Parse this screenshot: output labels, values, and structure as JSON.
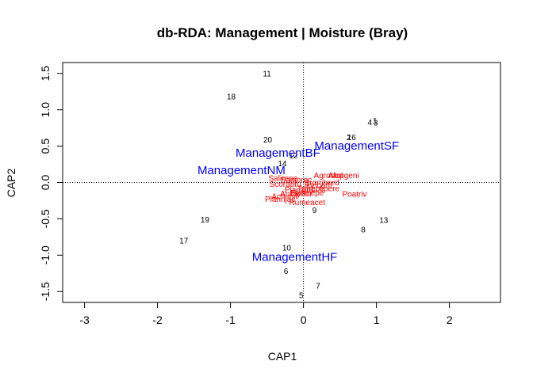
{
  "chart_data": {
    "type": "scatter",
    "title": "db-RDA: Management | Moisture (Bray)",
    "xlabel": "CAP1",
    "ylabel": "CAP2",
    "xlim": [
      -3.3,
      2.7
    ],
    "ylim": [
      -1.65,
      1.65
    ],
    "x_ticks": [
      -3,
      -2,
      -1,
      0,
      1,
      2
    ],
    "y_ticks": [
      -1.5,
      -1.0,
      -0.5,
      0.0,
      0.5,
      1.0,
      1.5
    ],
    "x_tick_labels": [
      "-3",
      "-2",
      "-1",
      "0",
      "1",
      "2"
    ],
    "y_tick_labels": [
      "-1.5",
      "-1.0",
      "-0.5",
      "0.0",
      "0.5",
      "1.0",
      "1.5"
    ],
    "reference_lines": {
      "x": 0,
      "y": 0,
      "style": "dotted"
    },
    "colors": {
      "sites": "#000000",
      "species": "#ff0000",
      "centroids": "#0000ff"
    },
    "sites": [
      {
        "label": "11",
        "x": -0.5,
        "y": 1.5
      },
      {
        "label": "18",
        "x": -0.99,
        "y": 1.18
      },
      {
        "label": "4",
        "x": 0.91,
        "y": 0.83
      },
      {
        "label": "1",
        "x": 0.98,
        "y": 0.85
      },
      {
        "label": "3",
        "x": 0.99,
        "y": 0.82
      },
      {
        "label": "2",
        "x": 0.62,
        "y": 0.62
      },
      {
        "label": "16",
        "x": 0.66,
        "y": 0.62
      },
      {
        "label": "20",
        "x": -0.49,
        "y": 0.59
      },
      {
        "label": "12",
        "x": -0.14,
        "y": 0.37
      },
      {
        "label": "14",
        "x": -0.29,
        "y": 0.26
      },
      {
        "label": "9",
        "x": 0.15,
        "y": -0.38
      },
      {
        "label": "19",
        "x": -1.35,
        "y": -0.51
      },
      {
        "label": "13",
        "x": 1.1,
        "y": -0.52
      },
      {
        "label": "8",
        "x": 0.82,
        "y": -0.65
      },
      {
        "label": "17",
        "x": -1.64,
        "y": -0.8
      },
      {
        "label": "10",
        "x": -0.23,
        "y": -0.9
      },
      {
        "label": "6",
        "x": -0.24,
        "y": -1.22
      },
      {
        "label": "7",
        "x": 0.2,
        "y": -1.42
      },
      {
        "label": "5",
        "x": -0.03,
        "y": -1.55
      }
    ],
    "species": [
      {
        "label": "Agrostol",
        "x": 0.34,
        "y": 0.1
      },
      {
        "label": "Alopgeni",
        "x": 0.55,
        "y": 0.1
      },
      {
        "label": "Salirepe",
        "x": -0.28,
        "y": 0.06
      },
      {
        "label": "Sagiproc",
        "x": -0.1,
        "y": 0.04
      },
      {
        "label": "Scorautu",
        "x": -0.25,
        "y": -0.02
      },
      {
        "label": "Bromhord",
        "x": 0.25,
        "y": 0.0
      },
      {
        "label": "Juncarti",
        "x": 0.2,
        "y": -0.03
      },
      {
        "label": "Trifrepe",
        "x": 0.1,
        "y": -0.08
      },
      {
        "label": "Planlanc",
        "x": -0.05,
        "y": -0.1
      },
      {
        "label": "Lolipere",
        "x": 0.3,
        "y": -0.08
      },
      {
        "label": "Poatriv",
        "x": 0.7,
        "y": -0.16
      },
      {
        "label": "Anthodor",
        "x": -0.1,
        "y": -0.15
      },
      {
        "label": "Elymrepe",
        "x": 0.05,
        "y": -0.14
      },
      {
        "label": "Achimill",
        "x": -0.25,
        "y": -0.19
      },
      {
        "label": "Rumeacet",
        "x": 0.05,
        "y": -0.27
      },
      {
        "label": "Plannjac",
        "x": -0.32,
        "y": -0.23
      }
    ],
    "centroids": [
      {
        "label": "ManagementSF",
        "x": 0.73,
        "y": 0.51
      },
      {
        "label": "ManagementBF",
        "x": -0.35,
        "y": 0.41
      },
      {
        "label": "ManagementNM",
        "x": -0.85,
        "y": 0.17
      },
      {
        "label": "ManagementHF",
        "x": -0.12,
        "y": -1.02
      }
    ]
  }
}
